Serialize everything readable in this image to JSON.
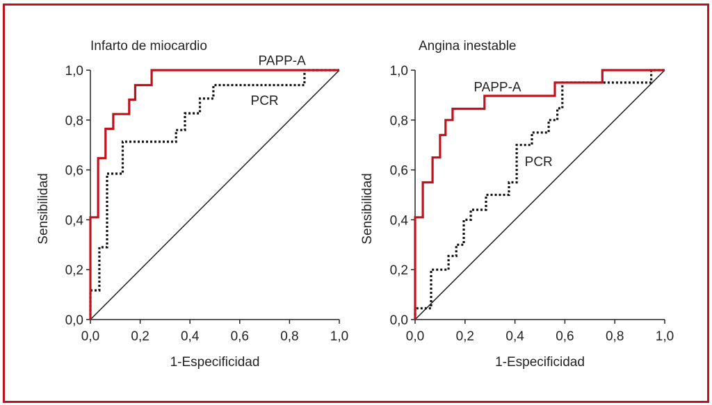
{
  "chart_data": [
    {
      "type": "line",
      "title": "Infarto de miocardio",
      "xlabel": "1-Especificidad",
      "ylabel": "Sensibilidad",
      "xlim": [
        0,
        1
      ],
      "ylim": [
        0,
        1
      ],
      "xticks": [
        "0,0",
        "0,2",
        "0,4",
        "0,6",
        "0,8",
        "1,0"
      ],
      "yticks": [
        "0,0",
        "0,2",
        "0,4",
        "0,6",
        "0,8",
        "1,0"
      ],
      "grid": false,
      "series": [
        {
          "name": "PAPP-A",
          "style": "solid",
          "color": "#c0121c",
          "step_points": [
            [
              0,
              0
            ],
            [
              0,
              0.41
            ],
            [
              0.031,
              0.41
            ],
            [
              0.031,
              0.647
            ],
            [
              0.061,
              0.647
            ],
            [
              0.061,
              0.765
            ],
            [
              0.092,
              0.765
            ],
            [
              0.092,
              0.824
            ],
            [
              0.156,
              0.824
            ],
            [
              0.156,
              0.882
            ],
            [
              0.18,
              0.882
            ],
            [
              0.18,
              0.94
            ],
            [
              0.246,
              0.94
            ],
            [
              0.246,
              1.0
            ],
            [
              1.0,
              1.0
            ]
          ]
        },
        {
          "name": "PCR",
          "style": "dotted",
          "color": "#111111",
          "step_points": [
            [
              0,
              0
            ],
            [
              0,
              0.117
            ],
            [
              0.036,
              0.117
            ],
            [
              0.036,
              0.29
            ],
            [
              0.067,
              0.29
            ],
            [
              0.067,
              0.585
            ],
            [
              0.13,
              0.585
            ],
            [
              0.13,
              0.713
            ],
            [
              0.344,
              0.713
            ],
            [
              0.344,
              0.76
            ],
            [
              0.38,
              0.76
            ],
            [
              0.38,
              0.827
            ],
            [
              0.44,
              0.827
            ],
            [
              0.44,
              0.886
            ],
            [
              0.494,
              0.886
            ],
            [
              0.494,
              0.94
            ],
            [
              0.86,
              0.94
            ],
            [
              0.86,
              1.0
            ],
            [
              1.0,
              1.0
            ]
          ]
        },
        {
          "name": "Reference",
          "style": "thin",
          "color": "#111111",
          "step_points": [
            [
              0,
              0
            ],
            [
              1,
              1
            ]
          ]
        }
      ],
      "annotations": [
        {
          "text": "PAPP-A",
          "x": 0.77,
          "y": 1.04
        },
        {
          "text": "PCR",
          "x": 0.7,
          "y": 0.88
        }
      ]
    },
    {
      "type": "line",
      "title": "Angina inestable",
      "xlabel": "1-Especificidad",
      "ylabel": "Sensibilidad",
      "xlim": [
        0,
        1
      ],
      "ylim": [
        0,
        1
      ],
      "xticks": [
        "0,0",
        "0,2",
        "0,4",
        "0,6",
        "0,8",
        "1,0"
      ],
      "yticks": [
        "0,0",
        "0,2",
        "0,4",
        "0,6",
        "0,8",
        "1,0"
      ],
      "grid": false,
      "series": [
        {
          "name": "PAPP-A",
          "style": "solid",
          "color": "#c0121c",
          "step_points": [
            [
              0,
              0
            ],
            [
              0,
              0.41
            ],
            [
              0.031,
              0.41
            ],
            [
              0.031,
              0.55
            ],
            [
              0.07,
              0.55
            ],
            [
              0.07,
              0.65
            ],
            [
              0.1,
              0.65
            ],
            [
              0.1,
              0.74
            ],
            [
              0.122,
              0.74
            ],
            [
              0.122,
              0.8
            ],
            [
              0.15,
              0.8
            ],
            [
              0.15,
              0.845
            ],
            [
              0.278,
              0.845
            ],
            [
              0.278,
              0.897
            ],
            [
              0.56,
              0.897
            ],
            [
              0.56,
              0.95
            ],
            [
              0.75,
              0.95
            ],
            [
              0.75,
              1.0
            ],
            [
              1.0,
              1.0
            ]
          ]
        },
        {
          "name": "PCR",
          "style": "dotted",
          "color": "#111111",
          "step_points": [
            [
              0,
              0
            ],
            [
              0,
              0.045
            ],
            [
              0.064,
              0.045
            ],
            [
              0.064,
              0.2
            ],
            [
              0.134,
              0.2
            ],
            [
              0.134,
              0.255
            ],
            [
              0.165,
              0.255
            ],
            [
              0.165,
              0.3
            ],
            [
              0.195,
              0.3
            ],
            [
              0.195,
              0.4
            ],
            [
              0.223,
              0.4
            ],
            [
              0.223,
              0.44
            ],
            [
              0.284,
              0.44
            ],
            [
              0.284,
              0.5
            ],
            [
              0.376,
              0.5
            ],
            [
              0.376,
              0.55
            ],
            [
              0.407,
              0.55
            ],
            [
              0.407,
              0.7
            ],
            [
              0.468,
              0.7
            ],
            [
              0.468,
              0.75
            ],
            [
              0.535,
              0.75
            ],
            [
              0.535,
              0.8
            ],
            [
              0.57,
              0.8
            ],
            [
              0.57,
              0.847
            ],
            [
              0.59,
              0.847
            ],
            [
              0.59,
              0.95
            ],
            [
              0.946,
              0.95
            ],
            [
              0.946,
              1.0
            ],
            [
              1.0,
              1.0
            ]
          ]
        },
        {
          "name": "Reference",
          "style": "thin",
          "color": "#111111",
          "step_points": [
            [
              0,
              0
            ],
            [
              1,
              1
            ]
          ]
        }
      ],
      "annotations": [
        {
          "text": "PAPP-A",
          "x": 0.33,
          "y": 0.935
        },
        {
          "text": "PCR",
          "x": 0.495,
          "y": 0.635
        }
      ]
    }
  ]
}
